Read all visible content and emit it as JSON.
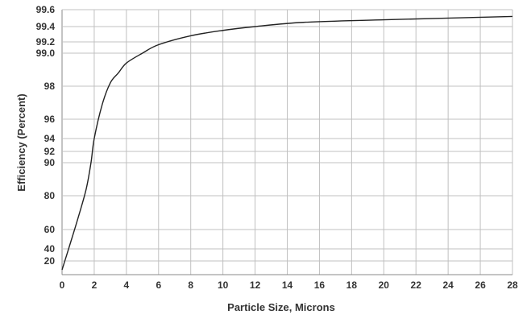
{
  "chart_data": {
    "type": "line",
    "title": "",
    "xlabel": "Particle Size, Microns",
    "ylabel": "Efficiency (Percent)",
    "xlim": [
      0,
      28
    ],
    "ylim": [
      0,
      99.6
    ],
    "y_scale": "nonlinear (expanded near 100%)",
    "grid": true,
    "x_ticks": [
      "0",
      "2",
      "4",
      "6",
      "8",
      "10",
      "12",
      "14",
      "16",
      "18",
      "20",
      "22",
      "24",
      "26",
      "28"
    ],
    "y_ticks": [
      "20",
      "40",
      "60",
      "80",
      "90",
      "92",
      "94",
      "96",
      "98",
      "99.0",
      "99.2",
      "99.4",
      "99.6"
    ],
    "line_color": "#222222",
    "grid_color": "#c0c0c0",
    "series": [
      {
        "x": [
          0,
          0.5,
          1,
          1.5,
          1.8,
          2,
          2.5,
          3,
          3.5,
          4,
          5,
          6,
          8,
          10,
          12,
          15,
          20,
          28
        ],
        "y": [
          7,
          45,
          67,
          82,
          90,
          94,
          96.9,
          98.1,
          98.4,
          98.7,
          99.0,
          99.15,
          99.28,
          99.35,
          99.4,
          99.45,
          99.48,
          99.52
        ]
      }
    ]
  }
}
